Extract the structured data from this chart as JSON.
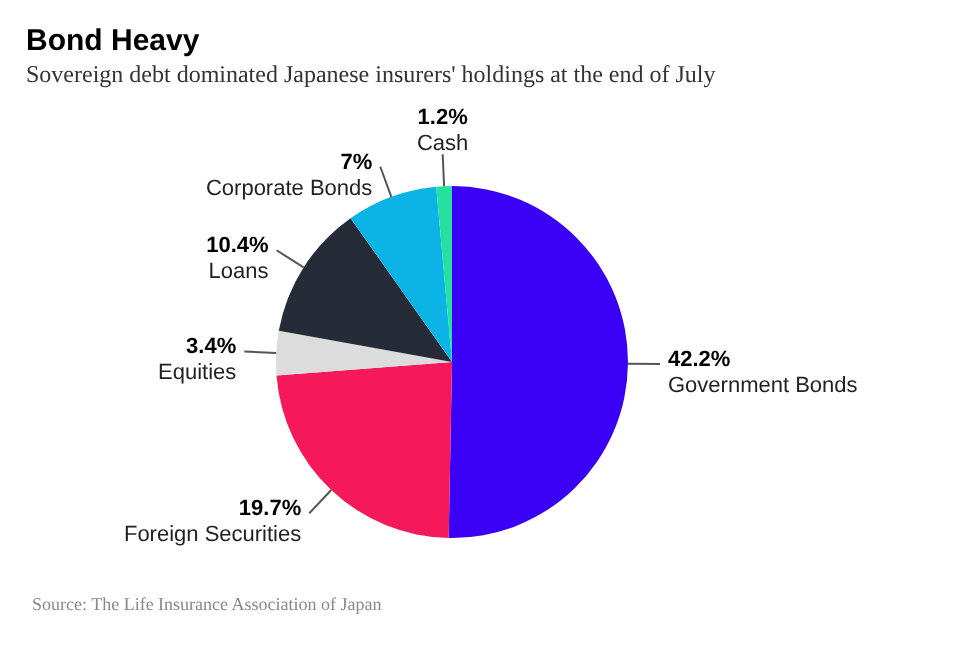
{
  "chart_data": {
    "type": "pie",
    "title": "Bond Heavy",
    "subtitle": "Sovereign debt dominated Japanese insurers' holdings at the end of July",
    "categories": [
      "Government Bonds",
      "Foreign Securities",
      "Equities",
      "Loans",
      "Corporate Bonds",
      "Cash"
    ],
    "values": [
      42.2,
      19.7,
      3.4,
      10.4,
      7,
      1.2
    ],
    "value_labels": [
      "42.2%",
      "19.7%",
      "3.4%",
      "10.4%",
      "7%",
      "1.2%"
    ],
    "colors": [
      "#3a00f5",
      "#f5195c",
      "#dcdcdc",
      "#252c38",
      "#0cb4e6",
      "#26e0a0"
    ],
    "annotations": [
      "Source: The Life Insurance Association of Japan"
    ]
  }
}
